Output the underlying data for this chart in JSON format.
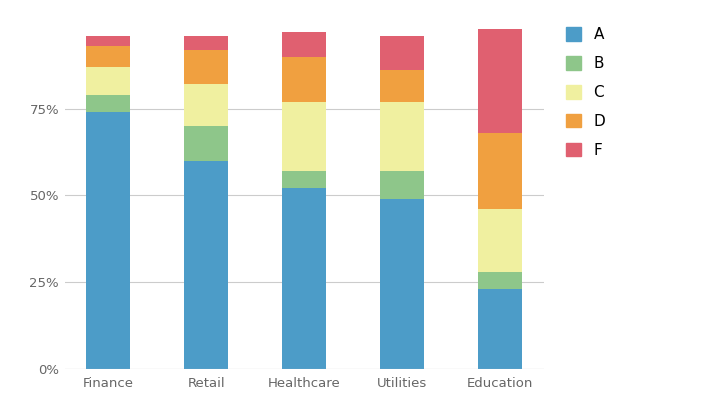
{
  "categories": [
    "Finance",
    "Retail",
    "Healthcare",
    "Utilities",
    "Education"
  ],
  "grades": [
    "A",
    "B",
    "C",
    "D",
    "F"
  ],
  "values": {
    "A": [
      74,
      60,
      52,
      49,
      23
    ],
    "B": [
      5,
      10,
      5,
      8,
      5
    ],
    "C": [
      8,
      12,
      20,
      20,
      18
    ],
    "D": [
      6,
      10,
      13,
      9,
      22
    ],
    "F": [
      3,
      4,
      7,
      10,
      30
    ]
  },
  "colors": {
    "A": "#4C9CC8",
    "B": "#8EC68A",
    "C": "#F0F0A0",
    "D": "#F0A040",
    "F": "#E06070"
  },
  "yticks": [
    0,
    25,
    50,
    75
  ],
  "ytick_labels": [
    "0%",
    "25%",
    "50%",
    "75%"
  ],
  "ylim": [
    0,
    102
  ],
  "background_color": "#FFFFFF",
  "grid_color": "#CCCCCC",
  "bar_width": 0.45,
  "legend_fontsize": 11,
  "tick_fontsize": 9.5
}
